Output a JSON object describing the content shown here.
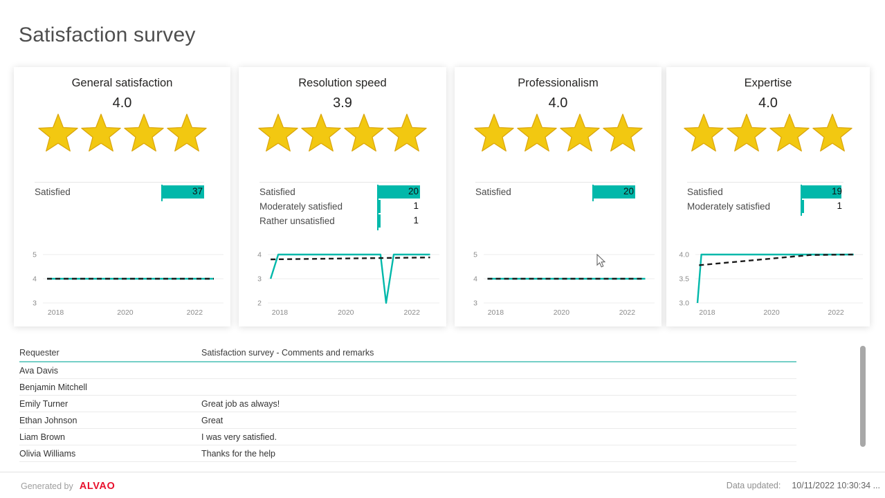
{
  "page": {
    "title": "Satisfaction survey"
  },
  "theme": {
    "teal": "#01b8aa",
    "star_fill": "#f2c811",
    "star_stroke": "#d9a40b",
    "trend_dash": "#1a1a1a",
    "grid": "#ececec",
    "axis_text": "#8a8a8a"
  },
  "panels": [
    {
      "title": "General satisfaction",
      "rating": "4.0",
      "stars": 4,
      "bar_chart": {
        "scale_max": 37,
        "rows": [
          {
            "label": "Satisfied",
            "value": 37
          }
        ]
      },
      "line_chart": {
        "type": "line",
        "ylim": [
          3,
          5
        ],
        "yticks": [
          {
            "v": 5,
            "label": "5"
          },
          {
            "v": 4,
            "label": "4"
          },
          {
            "v": 3,
            "label": "3"
          }
        ],
        "xlim": [
          2017.55,
          2022.75
        ],
        "xticks": [
          {
            "v": 2018,
            "label": "2018"
          },
          {
            "v": 2020,
            "label": "2020"
          },
          {
            "v": 2022,
            "label": "2022"
          }
        ],
        "score_points": [
          [
            2017.75,
            4
          ],
          [
            2022.55,
            4
          ]
        ],
        "trend_points": [
          [
            2017.75,
            4
          ],
          [
            2022.55,
            4
          ]
        ]
      }
    },
    {
      "title": "Resolution speed",
      "rating": "3.9",
      "stars": 4,
      "bar_chart": {
        "scale_max": 20,
        "rows": [
          {
            "label": "Satisfied",
            "value": 20
          },
          {
            "label": "Moderately satisfied",
            "value": 1
          },
          {
            "label": "Rather unsatisfied",
            "value": 1
          }
        ]
      },
      "line_chart": {
        "type": "line",
        "ylim": [
          2,
          4
        ],
        "yticks": [
          {
            "v": 4,
            "label": "4"
          },
          {
            "v": 3,
            "label": "3"
          },
          {
            "v": 2,
            "label": "2"
          }
        ],
        "xlim": [
          2017.55,
          2022.75
        ],
        "xticks": [
          {
            "v": 2018,
            "label": "2018"
          },
          {
            "v": 2020,
            "label": "2020"
          },
          {
            "v": 2022,
            "label": "2022"
          }
        ],
        "score_points": [
          [
            2017.72,
            3
          ],
          [
            2017.95,
            4
          ],
          [
            2021.05,
            4
          ],
          [
            2021.22,
            2
          ],
          [
            2021.45,
            4
          ],
          [
            2022.55,
            4
          ]
        ],
        "trend_points": [
          [
            2017.72,
            3.8
          ],
          [
            2022.55,
            3.88
          ]
        ]
      }
    },
    {
      "title": "Professionalism",
      "rating": "4.0",
      "stars": 4,
      "bar_chart": {
        "scale_max": 20,
        "rows": [
          {
            "label": "Satisfied",
            "value": 20
          }
        ]
      },
      "line_chart": {
        "type": "line",
        "ylim": [
          3,
          5
        ],
        "yticks": [
          {
            "v": 5,
            "label": "5"
          },
          {
            "v": 4,
            "label": "4"
          },
          {
            "v": 3,
            "label": "3"
          }
        ],
        "xlim": [
          2017.55,
          2022.75
        ],
        "xticks": [
          {
            "v": 2018,
            "label": "2018"
          },
          {
            "v": 2020,
            "label": "2020"
          },
          {
            "v": 2022,
            "label": "2022"
          }
        ],
        "score_points": [
          [
            2017.75,
            4
          ],
          [
            2022.55,
            4
          ]
        ],
        "trend_points": [
          [
            2017.75,
            4
          ],
          [
            2022.55,
            4
          ]
        ]
      }
    },
    {
      "title": "Expertise",
      "rating": "4.0",
      "stars": 4,
      "bar_chart": {
        "scale_max": 20,
        "rows": [
          {
            "label": "Satisfied",
            "value": 19
          },
          {
            "label": "Moderately satisfied",
            "value": 1
          }
        ]
      },
      "line_chart": {
        "type": "line",
        "ylim": [
          3,
          4
        ],
        "yticks": [
          {
            "v": 4,
            "label": "4.0"
          },
          {
            "v": 3.5,
            "label": "3.5"
          },
          {
            "v": 3,
            "label": "3.0"
          }
        ],
        "xlim": [
          2017.55,
          2022.75
        ],
        "xticks": [
          {
            "v": 2018,
            "label": "2018"
          },
          {
            "v": 2020,
            "label": "2020"
          },
          {
            "v": 2022,
            "label": "2022"
          }
        ],
        "score_points": [
          [
            2017.7,
            3
          ],
          [
            2017.82,
            4
          ],
          [
            2022.55,
            4
          ]
        ],
        "trend_points": [
          [
            2017.75,
            3.78
          ],
          [
            2021.2,
            3.99
          ],
          [
            2022.55,
            4
          ]
        ]
      }
    }
  ],
  "table": {
    "columns": [
      "Requester",
      "Satisfaction survey - Comments and remarks"
    ],
    "rows": [
      {
        "requester": "Ava Davis",
        "comment": ""
      },
      {
        "requester": "Benjamin Mitchell",
        "comment": ""
      },
      {
        "requester": "Emily Turner",
        "comment": "Great job as always!"
      },
      {
        "requester": "Ethan Johnson",
        "comment": "Great"
      },
      {
        "requester": "Liam Brown",
        "comment": "I was very satisfied."
      },
      {
        "requester": "Olivia Williams",
        "comment": "Thanks for the help"
      }
    ]
  },
  "footer": {
    "generated_by": "Generated by",
    "brand": "ALVAO",
    "updated_label": "Data updated:",
    "updated_value": "10/11/2022 10:30:34 ..."
  }
}
